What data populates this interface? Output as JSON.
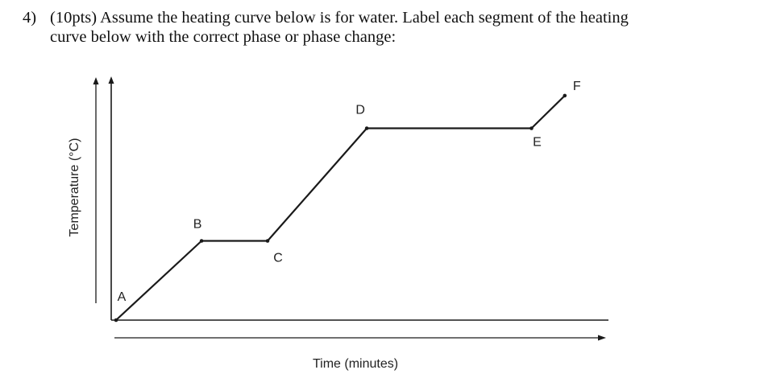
{
  "question": {
    "number": "4)",
    "line1": "(10pts) Assume the heating curve below is for water. Label each segment of the heating",
    "line2": "curve below with the correct phase or phase change:"
  },
  "chart_data": {
    "type": "line",
    "xlabel": "Time (minutes)",
    "ylabel": "Temperature (°C)",
    "grid": false,
    "series": [
      {
        "points": [
          {
            "label": "A",
            "x": 0,
            "y": 0
          },
          {
            "label": "B",
            "x": 1.62,
            "y": 0.97
          },
          {
            "label": "C",
            "x": 2.87,
            "y": 0.97
          },
          {
            "label": "D",
            "x": 4.75,
            "y": 2.35
          },
          {
            "label": "E",
            "x": 7.87,
            "y": 2.35
          },
          {
            "label": "F",
            "x": 8.5,
            "y": 2.75
          }
        ]
      }
    ],
    "colors": {
      "line": "#1a1a1a",
      "axis": "#1a1a1a",
      "label": "#222222"
    }
  }
}
